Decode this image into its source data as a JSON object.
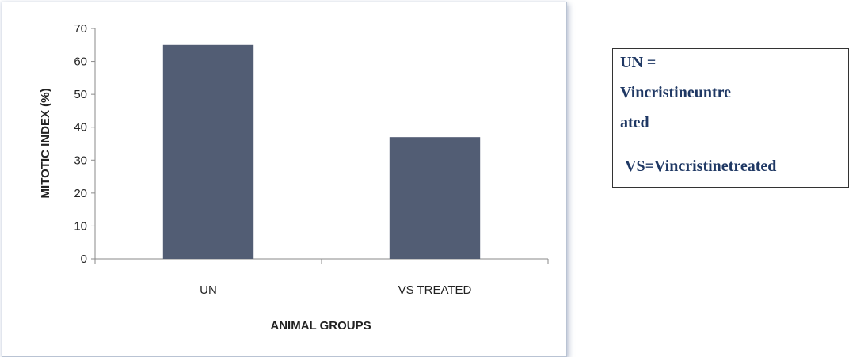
{
  "chart_data": {
    "type": "bar",
    "categories": [
      "UN",
      "VS TREATED"
    ],
    "values": [
      65,
      37
    ],
    "xlabel": "ANIMAL GROUPS",
    "ylabel": "MITOTIC INDEX (%)",
    "ylim": [
      0,
      70
    ],
    "yticks": [
      "0",
      "10",
      "20",
      "30",
      "40",
      "50",
      "60",
      "70"
    ],
    "bar_color": "#525d74",
    "grid": false,
    "legend": false
  },
  "legend_note": {
    "line1": "UN =",
    "line2": "Vincristineuntre",
    "line3": "ated",
    "line4": "VS=Vincristinetreated"
  }
}
